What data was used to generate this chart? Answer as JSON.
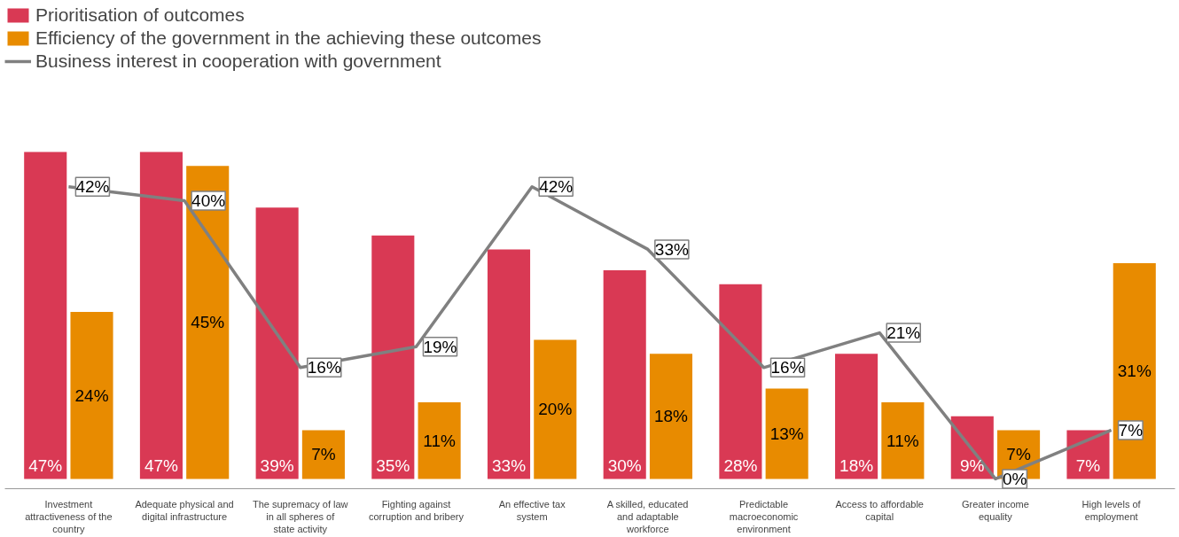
{
  "chart_data": {
    "type": "bar",
    "categories": [
      "Investment attractiveness of the country",
      "Adequate physical and digital infrastructure",
      "The supremacy of law in all spheres of state activity",
      "Fighting against corruption and bribery",
      "An effective tax system",
      "A skilled, educated and adaptable workforce",
      "Predictable macroeconomic environment",
      "Access to affordable capital",
      "Greater income equality",
      "High levels of employment"
    ],
    "series": [
      {
        "name": "Prioritisation of outcomes",
        "color": "#d93954",
        "values": [
          47,
          47,
          39,
          35,
          33,
          30,
          28,
          18,
          9,
          7
        ],
        "value_labels": [
          "47%",
          "47%",
          "39%",
          "35%",
          "33%",
          "30%",
          "28%",
          "18%",
          "9%",
          "7%"
        ]
      },
      {
        "name": "Efficiency of the government in the achieving these outcomes",
        "color": "#e88b00",
        "values": [
          24,
          45,
          7,
          11,
          20,
          18,
          13,
          11,
          7,
          31
        ],
        "value_labels": [
          "24%",
          "45%",
          "7%",
          "11%",
          "20%",
          "18%",
          "13%",
          "11%",
          "7%",
          "31%"
        ]
      },
      {
        "name": "Business interest in cooperation with government",
        "type": "line",
        "color": "#808080",
        "values": [
          42,
          40,
          16,
          19,
          42,
          33,
          16,
          21,
          0,
          7
        ],
        "value_labels": [
          "42%",
          "40%",
          "16%",
          "19%",
          "42%",
          "33%",
          "16%",
          "21%",
          "0%",
          "7%"
        ]
      }
    ],
    "legend": "top left",
    "grid": false
  }
}
